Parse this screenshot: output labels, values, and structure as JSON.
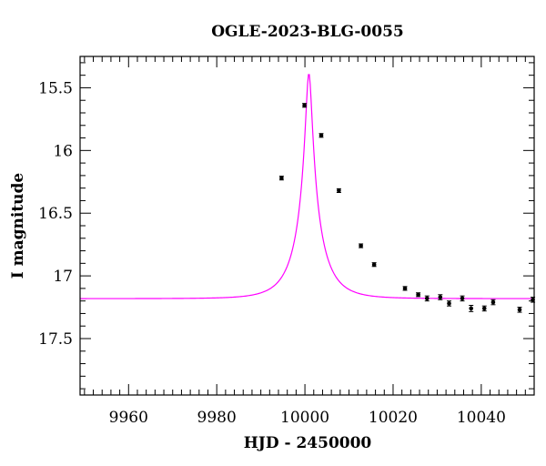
{
  "chart_data": {
    "type": "scatter",
    "title": "OGLE-2023-BLG-0055",
    "xlabel": "HJD - 2450000",
    "ylabel": "I magnitude",
    "xlim": [
      9949,
      10052
    ],
    "ylim": [
      17.95,
      15.25
    ],
    "y_inverted": true,
    "x_ticks": [
      9960,
      9980,
      10000,
      10020,
      10040
    ],
    "x_tick_labels": [
      "9960",
      "9980",
      "10000",
      "10020",
      "10040"
    ],
    "y_ticks": [
      15.5,
      16,
      16.5,
      17,
      17.5
    ],
    "y_tick_labels": [
      "15.5",
      "16",
      "16.5",
      "17",
      "17.5"
    ],
    "grid": false,
    "series": [
      {
        "kind": "points",
        "color": "#000000",
        "x": [
          9994.7,
          9999.9,
          10003.7,
          10007.7,
          10012.7,
          10015.7,
          10022.7,
          10025.7,
          10027.7,
          10030.7,
          10032.7,
          10035.7,
          10037.7,
          10040.7,
          10042.7,
          10048.7,
          10051.7
        ],
        "y": [
          16.22,
          15.64,
          15.88,
          16.32,
          16.76,
          16.91,
          17.1,
          17.15,
          17.18,
          17.17,
          17.22,
          17.18,
          17.26,
          17.26,
          17.21,
          17.27,
          17.19
        ],
        "yerr": [
          0.015,
          0.015,
          0.015,
          0.015,
          0.015,
          0.015,
          0.015,
          0.015,
          0.02,
          0.02,
          0.02,
          0.02,
          0.025,
          0.02,
          0.02,
          0.02,
          0.02
        ]
      },
      {
        "kind": "model",
        "color": "#ff00ff",
        "model": {
          "t0": 10000.9,
          "tE": 6.1,
          "u0": 0.11,
          "I_source": 17.89,
          "I_blend": 17.98
        }
      }
    ]
  }
}
